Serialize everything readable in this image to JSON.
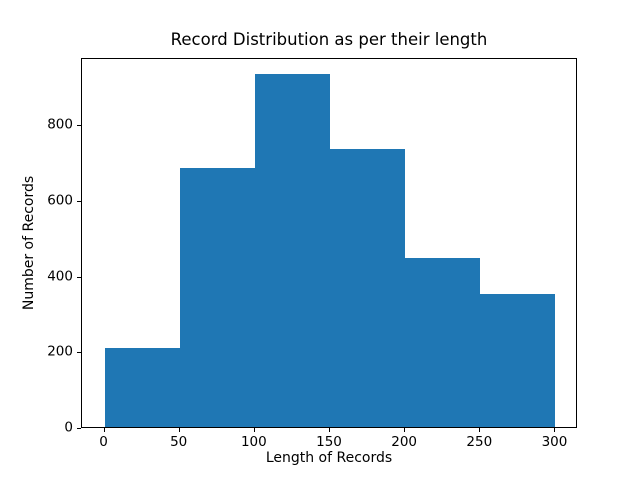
{
  "chart_data": {
    "type": "bar",
    "subtype": "histogram",
    "title": "Record Distribution as per their length",
    "xlabel": "Length of Records",
    "ylabel": "Number of Records",
    "bin_edges": [
      0,
      50,
      100,
      150,
      200,
      250,
      300
    ],
    "values": [
      208,
      685,
      932,
      734,
      446,
      352
    ],
    "categories": [
      "0-50",
      "50-100",
      "100-150",
      "150-200",
      "200-250",
      "250-300"
    ],
    "xticks": [
      0,
      50,
      100,
      150,
      200,
      250,
      300
    ],
    "yticks": [
      0,
      200,
      400,
      600,
      800
    ],
    "xlim": [
      -15,
      315
    ],
    "ylim": [
      0,
      978
    ],
    "grid": false,
    "legend": false,
    "bar_color": "#1f77b4",
    "frame_color": "#000000",
    "background_color": "#ffffff"
  }
}
